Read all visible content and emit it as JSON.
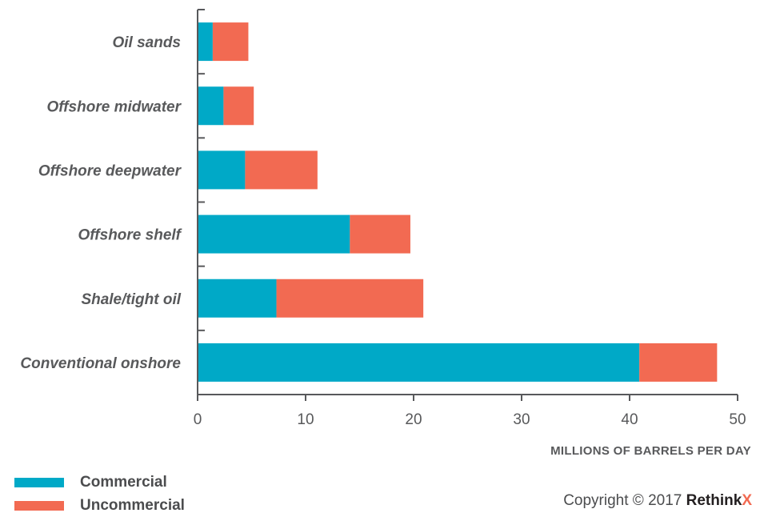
{
  "chart_data": {
    "type": "bar",
    "orientation": "horizontal",
    "stacked": true,
    "categories": [
      "Oil sands",
      "Offshore midwater",
      "Offshore deepwater",
      "Offshore shelf",
      "Shale/tight oil",
      "Conventional onshore"
    ],
    "series": [
      {
        "name": "Commercial",
        "color": "#00a9c7",
        "values": [
          1.4,
          2.4,
          4.4,
          14.1,
          7.3,
          40.9
        ]
      },
      {
        "name": "Uncommercial",
        "color": "#f26a52",
        "values": [
          3.3,
          2.8,
          6.7,
          5.6,
          13.6,
          7.2
        ]
      }
    ],
    "xlabel": "MILLIONS OF BARRELS PER DAY",
    "xlim": [
      0,
      50
    ],
    "xticks": [
      "0",
      "10",
      "20",
      "30",
      "40",
      "50"
    ],
    "legend_position": "bottom-left",
    "grid": false
  },
  "copyright": {
    "prefix": "Copyright © 2017",
    "brand": "Rethink",
    "brand_x": "X",
    "brand_x_color": "#f26a52"
  }
}
